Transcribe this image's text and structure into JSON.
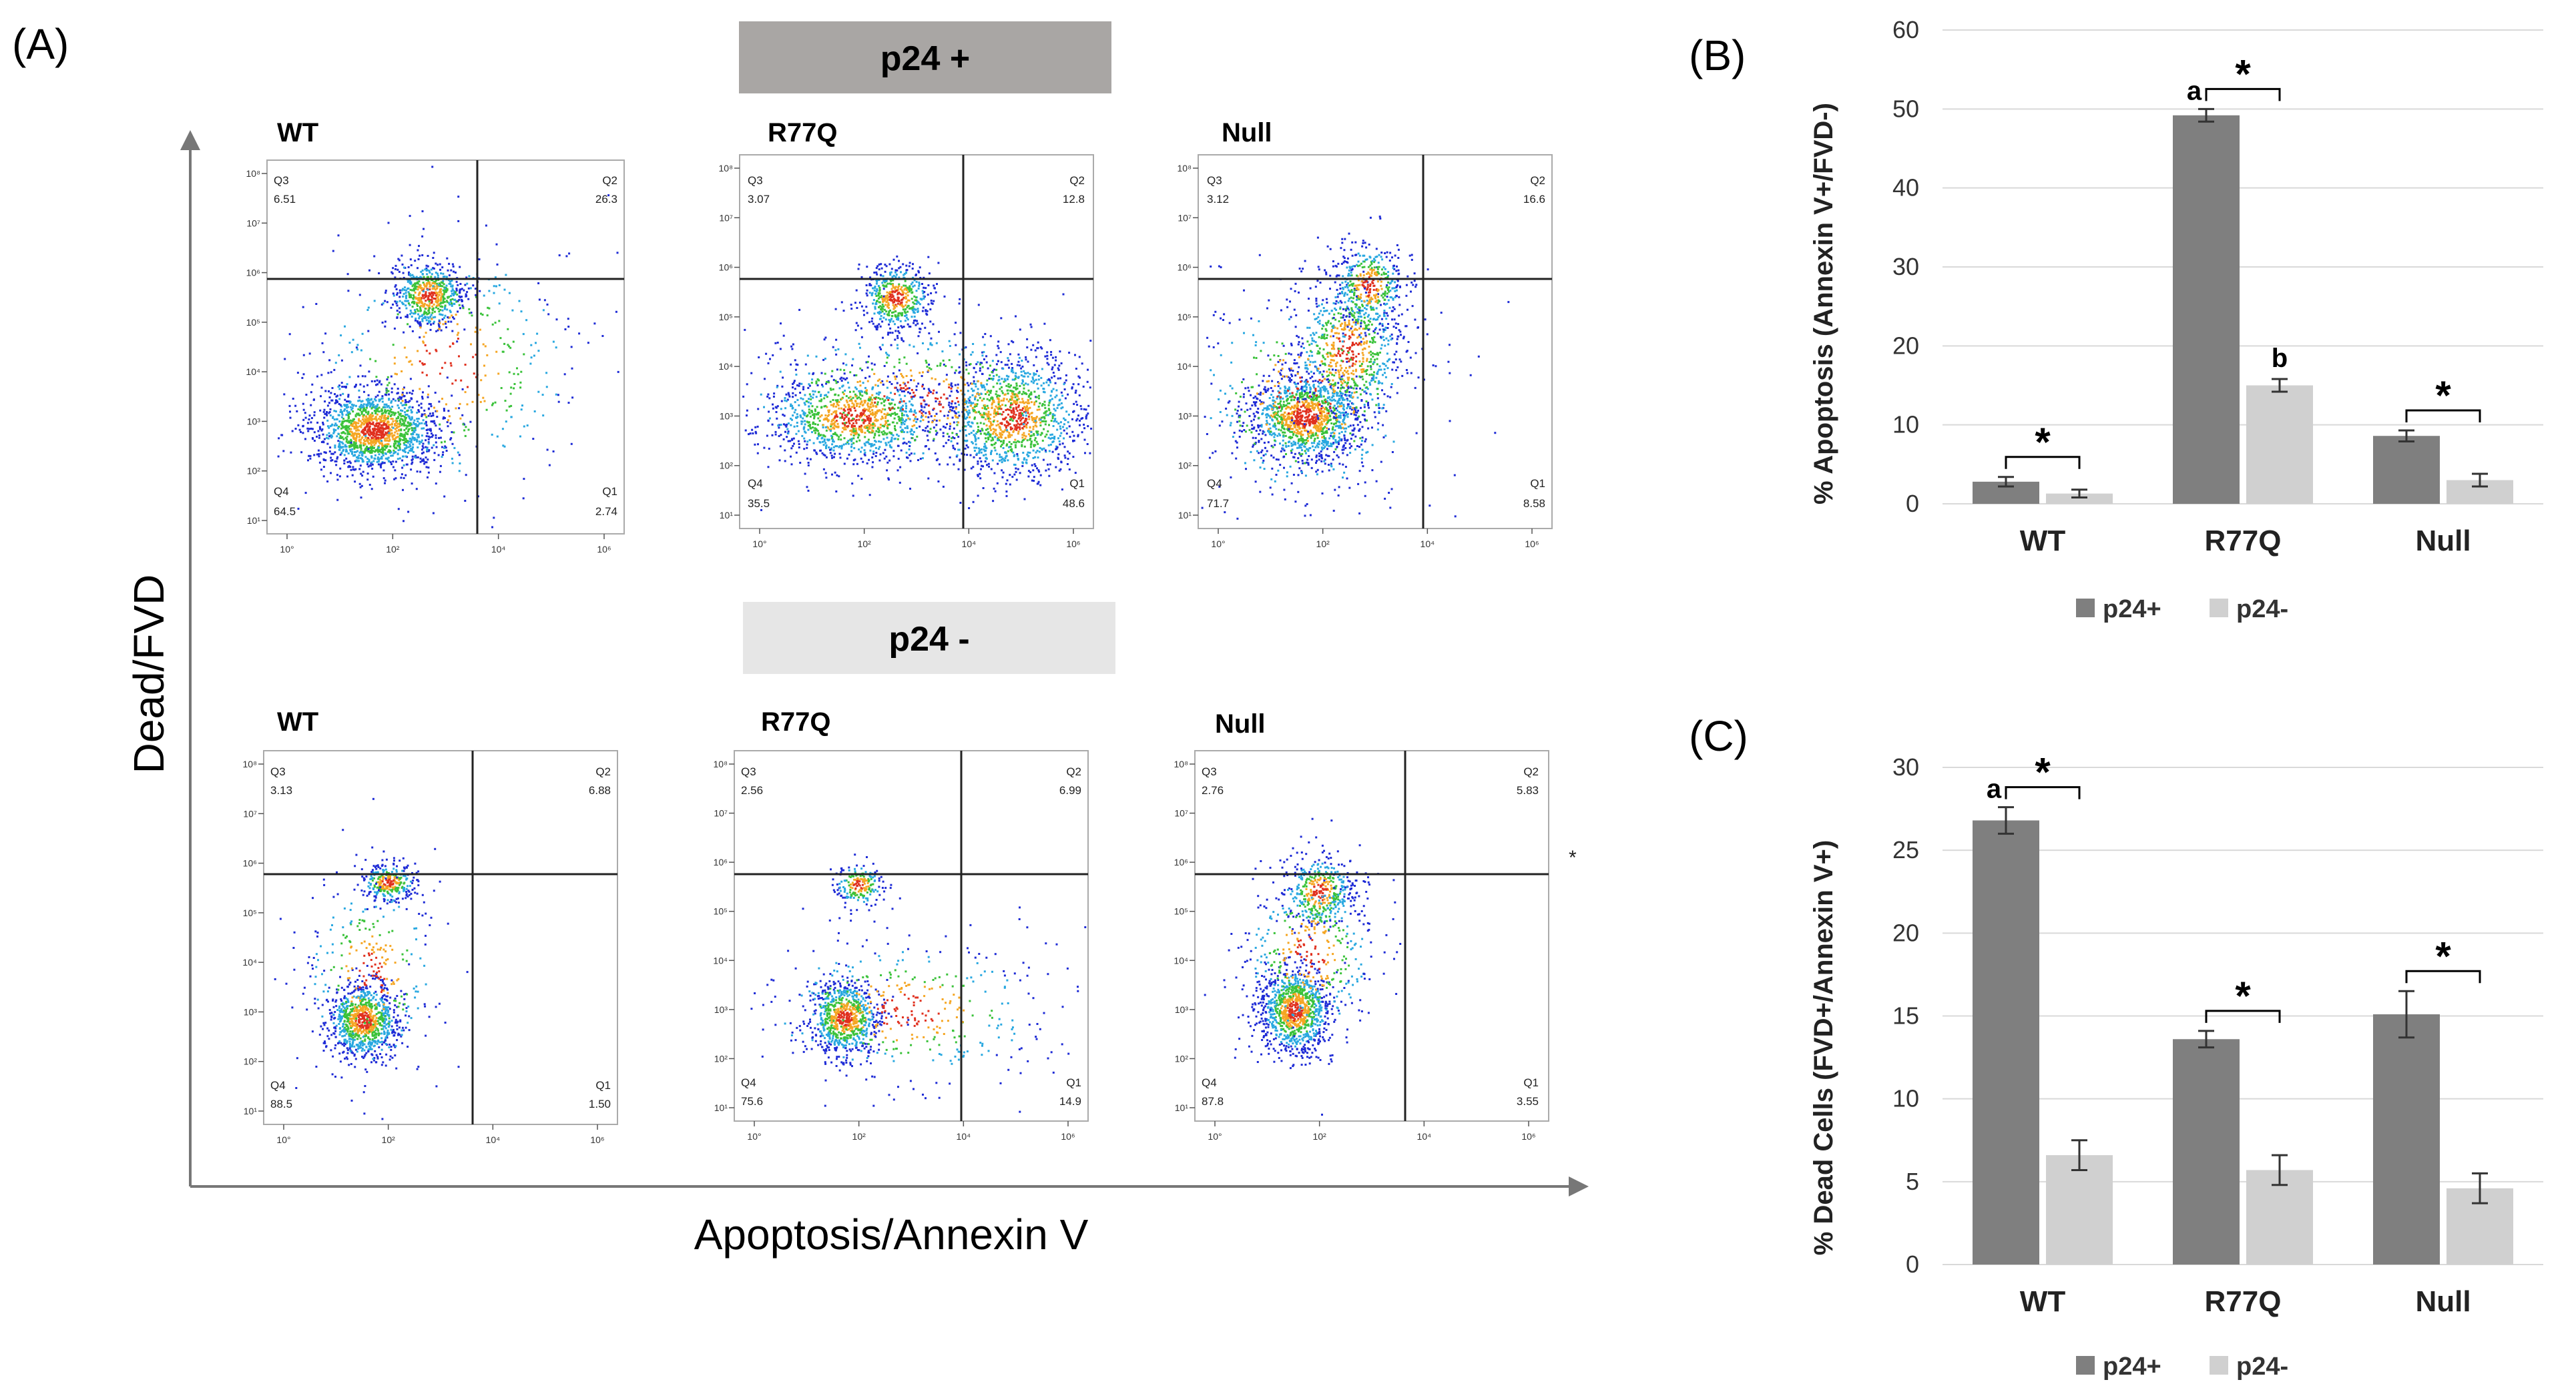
{
  "panel_labels": {
    "A": "(A)",
    "B": "(B)",
    "C": "(C)"
  },
  "flow": {
    "header_pos": "p24 +",
    "header_neg": "p24 -",
    "x_axis_title": "Apoptosis/Annexin  V",
    "y_axis_title": "Dead/FVD",
    "x_ticks": [
      "10°",
      "10²",
      "10⁴",
      "10⁶"
    ],
    "y_ticks": [
      "10¹",
      "10²",
      "10³",
      "10⁴",
      "10⁵",
      "10⁶",
      "10⁷",
      "10⁸"
    ],
    "plots": [
      {
        "name": "WT",
        "Q1": "2.74",
        "Q2": "26.3",
        "Q3": "6.51",
        "Q4": "64.5"
      },
      {
        "name": "R77Q",
        "Q1": "48.6",
        "Q2": "12.8",
        "Q3": "3.07",
        "Q4": "35.5"
      },
      {
        "name": "Null",
        "Q1": "8.58",
        "Q2": "16.6",
        "Q3": "3.12",
        "Q4": "71.7"
      },
      {
        "name": "WT",
        "Q1": "1.50",
        "Q2": "6.88",
        "Q3": "3.13",
        "Q4": "88.5"
      },
      {
        "name": "R77Q",
        "Q1": "14.9",
        "Q2": "6.99",
        "Q3": "2.56",
        "Q4": "75.6"
      },
      {
        "name": "Null",
        "Q1": "3.55",
        "Q2": "5.83",
        "Q3": "2.76",
        "Q4": "87.8"
      }
    ],
    "quadrant_names": [
      "Q1",
      "Q2",
      "Q3",
      "Q4"
    ],
    "stray_mark": "*"
  },
  "chart_data": [
    {
      "type": "bar",
      "panel": "(B)",
      "categories": [
        "WT",
        "R77Q",
        "Null"
      ],
      "series": [
        {
          "name": "p24+",
          "values": [
            2.8,
            49.2,
            8.6
          ],
          "errors": [
            0.6,
            0.8,
            0.7
          ],
          "color": "#7f7f7f"
        },
        {
          "name": "p24-",
          "values": [
            1.3,
            15.0,
            3.0
          ],
          "errors": [
            0.5,
            0.8,
            0.8
          ],
          "color": "#d0d0d0"
        }
      ],
      "ylabel": "% Apoptosis (Annexin V+/FVD-)",
      "ylim": [
        0,
        60
      ],
      "yticks": [
        0,
        10,
        20,
        30,
        40,
        50,
        60
      ],
      "grid": true,
      "legend": "bottom",
      "significance": [
        "*",
        "*",
        "*"
      ],
      "annotations": [
        {
          "category": 1,
          "series": 0,
          "text": "a"
        },
        {
          "category": 1,
          "series": 1,
          "text": "b"
        }
      ]
    },
    {
      "type": "bar",
      "panel": "(C)",
      "categories": [
        "WT",
        "R77Q",
        "Null"
      ],
      "series": [
        {
          "name": "p24+",
          "values": [
            26.8,
            13.6,
            15.1
          ],
          "errors": [
            0.8,
            0.5,
            1.4
          ],
          "color": "#7f7f7f"
        },
        {
          "name": "p24-",
          "values": [
            6.6,
            5.7,
            4.6
          ],
          "errors": [
            0.9,
            0.9,
            0.9
          ],
          "color": "#d0d0d0"
        }
      ],
      "ylabel": "% Dead Cells (FVD+/Annexin V+)",
      "ylim": [
        0,
        30
      ],
      "yticks": [
        0,
        5,
        10,
        15,
        20,
        25,
        30
      ],
      "grid": true,
      "legend": "bottom",
      "significance": [
        "*",
        "*",
        "*"
      ],
      "annotations": [
        {
          "category": 0,
          "series": 0,
          "text": "a"
        }
      ]
    }
  ]
}
